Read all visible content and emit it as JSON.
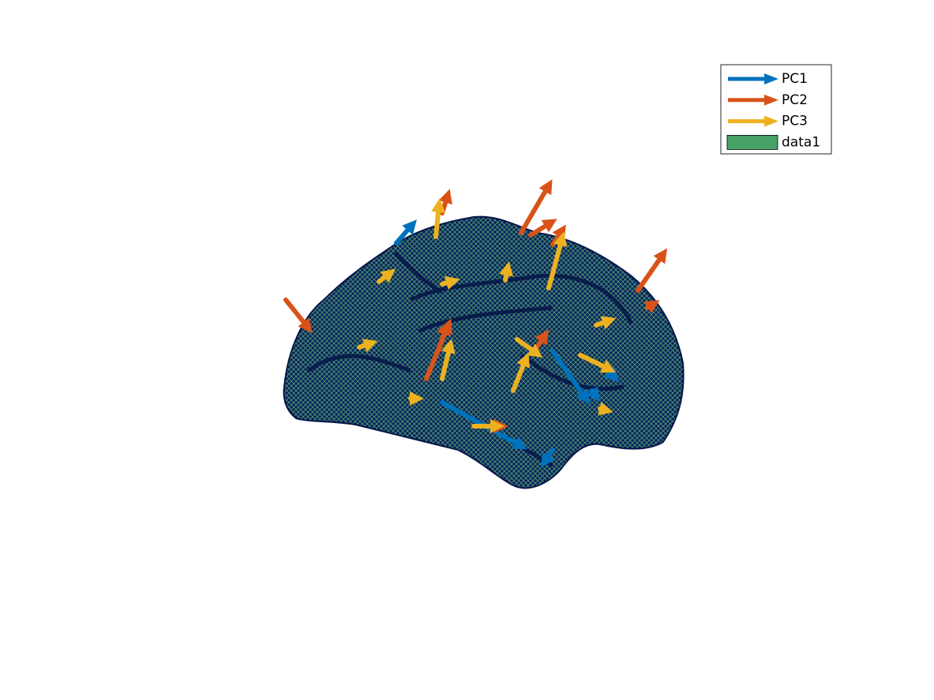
{
  "legend": {
    "entries": [
      {
        "label": "PC1",
        "color": "#0072bd"
      },
      {
        "label": "PC2",
        "color": "#d95319"
      },
      {
        "label": "PC3",
        "color": "#edb120"
      },
      {
        "label": "data1",
        "color": "#45a165"
      }
    ]
  }
}
